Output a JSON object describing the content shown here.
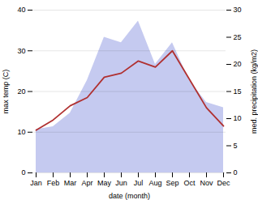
{
  "chart_data": {
    "type": "line",
    "xlabel": "date (month)",
    "ylabel": "max temp (C)",
    "y2label": "med. precipitation (kg/m2)",
    "categories": [
      "Jan",
      "Feb",
      "Mar",
      "Apr",
      "May",
      "Jun",
      "Jul",
      "Aug",
      "Sep",
      "Oct",
      "Nov",
      "Dec"
    ],
    "series": [
      {
        "type": "area",
        "axis": "y2",
        "color": "#c5caf0",
        "values": [
          8.0,
          8.5,
          11.0,
          17.0,
          25.0,
          24.0,
          28.0,
          20.0,
          24.0,
          17.0,
          13.0,
          12.0
        ]
      },
      {
        "type": "line",
        "color": "#b03030",
        "values": [
          10.5,
          13.0,
          16.5,
          18.5,
          23.5,
          24.5,
          27.5,
          26.0,
          30.0,
          23.0,
          16.0,
          11.5
        ]
      }
    ],
    "ylim": [
      0,
      40
    ],
    "yticks": [
      0,
      10,
      20,
      30,
      40
    ],
    "y2lim": [
      0,
      30
    ],
    "y2ticks": [
      0,
      5,
      10,
      15,
      20,
      25,
      30
    ],
    "grid": true
  }
}
